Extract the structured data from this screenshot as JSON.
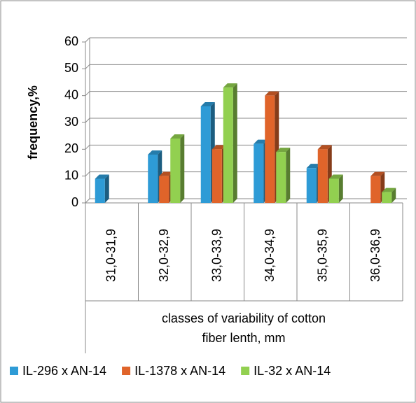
{
  "chart_data": {
    "type": "bar3d",
    "y_label": "frequency,%",
    "x_label": [
      "classes of variability of cotton",
      "fiber lenth, mm"
    ],
    "categories": [
      "31,0-31,9",
      "32,0-32,9",
      "33,0-33,9",
      "34,0-34,9",
      "35,0-35,9",
      "36,0-36,9"
    ],
    "series": [
      {
        "name": "IL-296 x AN-14",
        "color": "#2e9bd6",
        "values": [
          9,
          18,
          36,
          22,
          13,
          null
        ]
      },
      {
        "name": "IL-1378 x AN-14",
        "color": "#e0642a",
        "values": [
          null,
          10,
          20,
          40,
          20,
          10
        ]
      },
      {
        "name": "IL-32 x AN-14",
        "color": "#92d050",
        "values": [
          null,
          24,
          43,
          19,
          9,
          4
        ]
      }
    ],
    "ylim": [
      0,
      60
    ],
    "yticks": [
      0,
      10,
      20,
      30,
      40,
      50,
      60
    ],
    "grid": true,
    "legend": "bottom"
  }
}
